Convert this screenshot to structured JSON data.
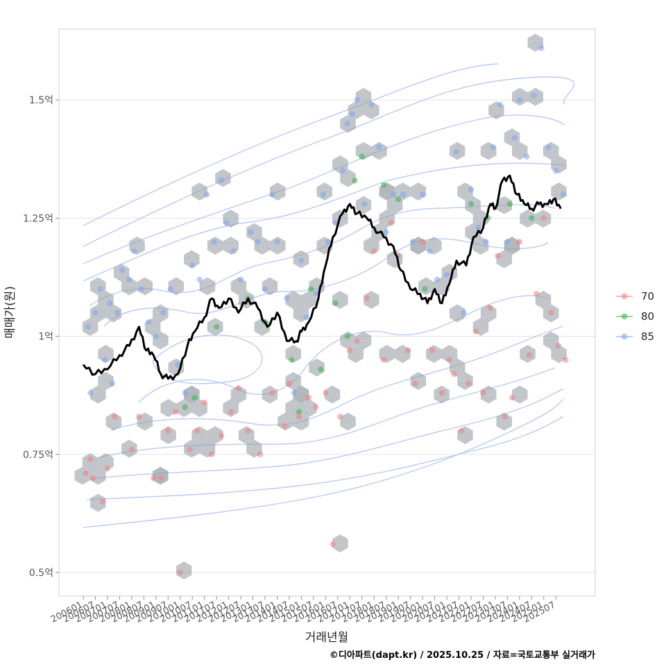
{
  "chart_data": {
    "type": "scatter",
    "xlabel": "거래년월",
    "ylabel": "매매가(원)",
    "caption": "©디아파트(dapt.kr) / 2025.10.25 / 자료=국토교통부 실거래가",
    "x_range": [
      "200601",
      "202510"
    ],
    "ylim": [
      0.45,
      1.65
    ],
    "y_ticks": [
      {
        "value": 0.5,
        "label": "0.5억"
      },
      {
        "value": 0.75,
        "label": "0.75억"
      },
      {
        "value": 1.0,
        "label": "1억"
      },
      {
        "value": 1.25,
        "label": "1.25억"
      },
      {
        "value": 1.5,
        "label": "1.5억"
      }
    ],
    "x_ticks": [
      "200601",
      "200607",
      "200701",
      "200707",
      "200801",
      "200807",
      "200901",
      "200907",
      "201001",
      "201007",
      "201101",
      "201107",
      "201201",
      "201207",
      "201301",
      "201307",
      "201401",
      "201407",
      "201501",
      "201507",
      "201601",
      "201607",
      "201701",
      "201707",
      "201801",
      "201807",
      "201901",
      "201907",
      "202001",
      "202007",
      "202101",
      "202107",
      "202201",
      "202207",
      "202301",
      "202307",
      "202401",
      "202407",
      "202501",
      "202507"
    ],
    "legend": {
      "position": "right",
      "entries": [
        {
          "label": "70",
          "color": "#F08080"
        },
        {
          "label": "80",
          "color": "#3CB34A"
        },
        {
          "label": "85",
          "color": "#7FA5F0"
        }
      ]
    },
    "hex_color": "#9AA0A6",
    "trend_line": {
      "name": "moving average",
      "color": "#000000",
      "x": [
        2006.0,
        2006.5,
        2007.0,
        2007.5,
        2007.9,
        2008.3,
        2008.6,
        2008.9,
        2009.2,
        2009.5,
        2009.9,
        2010.3,
        2010.6,
        2011.0,
        2011.3,
        2011.6,
        2012.0,
        2012.4,
        2012.8,
        2013.2,
        2013.6,
        2014.0,
        2014.4,
        2014.8,
        2015.0,
        2015.3,
        2015.7,
        2016.0,
        2016.3,
        2016.7,
        2017.0,
        2017.3,
        2017.7,
        2018.0,
        2018.4,
        2018.8,
        2019.1,
        2019.5,
        2019.9,
        2020.2,
        2020.5,
        2020.8,
        2021.1,
        2021.4,
        2021.8,
        2022.1,
        2022.5,
        2022.8,
        2023.0,
        2023.3,
        2023.6,
        2023.9,
        2024.2,
        2024.5,
        2024.8,
        2025.1,
        2025.4,
        2025.7
      ],
      "y": [
        0.94,
        0.92,
        0.93,
        0.96,
        0.98,
        1.02,
        0.97,
        0.96,
        0.92,
        0.91,
        0.92,
        0.98,
        1.01,
        1.04,
        1.08,
        1.06,
        1.08,
        1.05,
        1.08,
        1.06,
        1.02,
        1.05,
        0.99,
        0.99,
        1.01,
        1.03,
        1.08,
        1.15,
        1.21,
        1.26,
        1.28,
        1.26,
        1.25,
        1.23,
        1.21,
        1.19,
        1.14,
        1.1,
        1.09,
        1.07,
        1.1,
        1.07,
        1.11,
        1.16,
        1.15,
        1.21,
        1.23,
        1.28,
        1.27,
        1.33,
        1.34,
        1.3,
        1.28,
        1.27,
        1.28,
        1.28,
        1.29,
        1.27
      ]
    },
    "series": [
      {
        "name": "70",
        "points": [
          [
            2006.1,
            0.71
          ],
          [
            2006.3,
            0.74
          ],
          [
            2006.4,
            0.7
          ],
          [
            2006.8,
            0.65
          ],
          [
            2007.0,
            0.72
          ],
          [
            2007.3,
            0.83
          ],
          [
            2008.0,
            0.76
          ],
          [
            2008.3,
            0.83
          ],
          [
            2008.9,
            0.7
          ],
          [
            2009.2,
            0.7
          ],
          [
            2009.5,
            0.8
          ],
          [
            2009.8,
            0.84
          ],
          [
            2010.0,
            0.5
          ],
          [
            2010.4,
            0.76
          ],
          [
            2010.7,
            0.8
          ],
          [
            2011.0,
            0.86
          ],
          [
            2011.3,
            0.75
          ],
          [
            2011.7,
            0.79
          ],
          [
            2012.1,
            0.84
          ],
          [
            2012.4,
            0.89
          ],
          [
            2012.8,
            0.8
          ],
          [
            2013.3,
            0.75
          ],
          [
            2013.8,
            0.88
          ],
          [
            2014.3,
            0.81
          ],
          [
            2014.5,
            0.9
          ],
          [
            2014.9,
            0.83
          ],
          [
            2015.3,
            0.87
          ],
          [
            2015.6,
            0.85
          ],
          [
            2016.0,
            0.88
          ],
          [
            2016.3,
            0.56
          ],
          [
            2016.6,
            0.83
          ],
          [
            2017.0,
            0.97
          ],
          [
            2017.3,
            0.99
          ],
          [
            2017.7,
            1.08
          ],
          [
            2018.0,
            1.18
          ],
          [
            2018.4,
            0.95
          ],
          [
            2018.7,
            1.24
          ],
          [
            2019.0,
            1.17
          ],
          [
            2019.4,
            0.97
          ],
          [
            2019.7,
            0.9
          ],
          [
            2020.0,
            1.2
          ],
          [
            2020.4,
            0.97
          ],
          [
            2020.8,
            0.88
          ],
          [
            2021.1,
            0.95
          ],
          [
            2021.3,
            0.92
          ],
          [
            2021.6,
            0.8
          ],
          [
            2021.9,
            0.9
          ],
          [
            2022.2,
            1.01
          ],
          [
            2022.5,
            0.88
          ],
          [
            2022.8,
            1.06
          ],
          [
            2023.1,
            1.17
          ],
          [
            2023.4,
            0.83
          ],
          [
            2023.7,
            0.87
          ],
          [
            2024.0,
            1.2
          ],
          [
            2024.4,
            0.96
          ],
          [
            2024.7,
            1.09
          ],
          [
            2025.0,
            1.25
          ],
          [
            2025.3,
            1.05
          ],
          [
            2025.6,
            0.98
          ],
          [
            2025.9,
            0.95
          ]
        ]
      },
      {
        "name": "80",
        "points": [
          [
            2010.2,
            0.85
          ],
          [
            2010.6,
            0.87
          ],
          [
            2011.5,
            1.02
          ],
          [
            2012.8,
            1.08
          ],
          [
            2013.5,
            1.03
          ],
          [
            2014.6,
            0.95
          ],
          [
            2014.9,
            0.84
          ],
          [
            2015.4,
            1.1
          ],
          [
            2015.8,
            0.93
          ],
          [
            2016.4,
            1.07
          ],
          [
            2016.9,
            1.0
          ],
          [
            2017.2,
            1.33
          ],
          [
            2017.5,
            1.38
          ],
          [
            2018.4,
            1.32
          ],
          [
            2019.0,
            1.29
          ],
          [
            2020.1,
            1.1
          ],
          [
            2022.0,
            1.28
          ],
          [
            2022.7,
            1.25
          ],
          [
            2023.6,
            1.28
          ],
          [
            2024.5,
            1.25
          ]
        ]
      },
      {
        "name": "85",
        "points": [
          [
            2006.2,
            1.02
          ],
          [
            2006.3,
            0.88
          ],
          [
            2006.5,
            1.05
          ],
          [
            2006.7,
            1.1
          ],
          [
            2006.9,
            0.95
          ],
          [
            2007.1,
            1.07
          ],
          [
            2007.2,
            0.9
          ],
          [
            2007.4,
            1.05
          ],
          [
            2007.6,
            1.14
          ],
          [
            2007.9,
            1.12
          ],
          [
            2008.1,
            1.18
          ],
          [
            2008.4,
            1.1
          ],
          [
            2008.7,
            1.03
          ],
          [
            2009.0,
            1.0
          ],
          [
            2009.3,
            1.05
          ],
          [
            2009.6,
            1.1
          ],
          [
            2009.9,
            0.94
          ],
          [
            2010.2,
            0.88
          ],
          [
            2010.5,
            1.15
          ],
          [
            2010.8,
            1.12
          ],
          [
            2011.1,
            1.3
          ],
          [
            2011.4,
            1.2
          ],
          [
            2011.7,
            1.33
          ],
          [
            2011.9,
            1.24
          ],
          [
            2012.2,
            1.18
          ],
          [
            2012.5,
            1.12
          ],
          [
            2012.9,
            1.22
          ],
          [
            2013.2,
            1.2
          ],
          [
            2013.5,
            1.1
          ],
          [
            2013.8,
            1.3
          ],
          [
            2014.0,
            1.2
          ],
          [
            2014.4,
            1.08
          ],
          [
            2014.7,
            0.88
          ],
          [
            2015.0,
            1.16
          ],
          [
            2015.2,
            1.04
          ],
          [
            2015.6,
            1.09
          ],
          [
            2015.9,
            1.3
          ],
          [
            2016.1,
            1.2
          ],
          [
            2016.4,
            1.24
          ],
          [
            2016.7,
            1.35
          ],
          [
            2016.9,
            1.45
          ],
          [
            2017.1,
            1.47
          ],
          [
            2017.3,
            1.5
          ],
          [
            2017.6,
            1.28
          ],
          [
            2017.9,
            1.49
          ],
          [
            2018.2,
            1.4
          ],
          [
            2018.5,
            1.22
          ],
          [
            2018.8,
            1.3
          ],
          [
            2019.2,
            1.3
          ],
          [
            2019.6,
            1.2
          ],
          [
            2020.0,
            1.3
          ],
          [
            2020.3,
            1.18
          ],
          [
            2020.6,
            1.12
          ],
          [
            2021.0,
            1.13
          ],
          [
            2021.4,
            1.39
          ],
          [
            2021.7,
            1.05
          ],
          [
            2022.0,
            1.31
          ],
          [
            2022.3,
            1.23
          ],
          [
            2022.6,
            1.2
          ],
          [
            2022.9,
            1.4
          ],
          [
            2023.2,
            1.49
          ],
          [
            2023.5,
            1.2
          ],
          [
            2023.8,
            1.42
          ],
          [
            2024.0,
            1.5
          ],
          [
            2024.3,
            1.38
          ],
          [
            2024.6,
            1.51
          ],
          [
            2024.9,
            1.61
          ],
          [
            2025.2,
            1.4
          ],
          [
            2025.5,
            1.35
          ],
          [
            2025.8,
            1.3
          ]
        ]
      }
    ]
  }
}
